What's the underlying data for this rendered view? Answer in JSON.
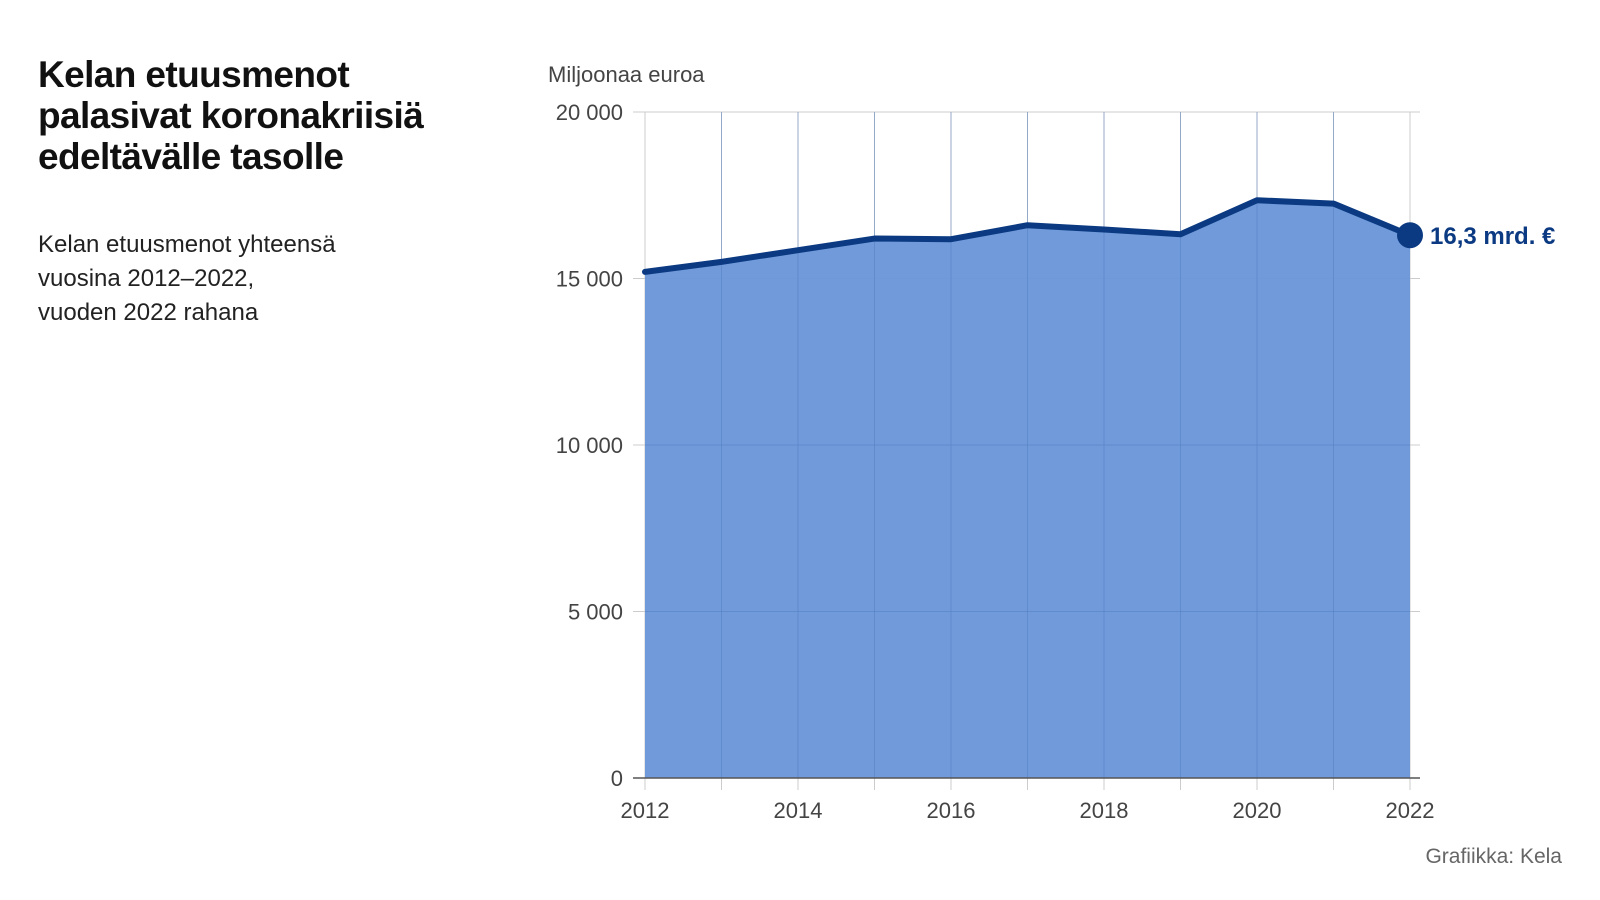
{
  "title_lines": [
    "Kelan etuusmenot",
    "palasivat koronakriisiä",
    "edeltävälle tasolle"
  ],
  "subtitle_lines": [
    "Kelan etuusmenot yhteensä",
    "vuosina 2012–2022,",
    "vuoden 2022 rahana"
  ],
  "unit_label": "Miljoonaa euroa",
  "credit": "Grafiikka: Kela",
  "chart_data": {
    "type": "area",
    "x": [
      2012,
      2013,
      2014,
      2015,
      2016,
      2017,
      2018,
      2019,
      2020,
      2021,
      2022
    ],
    "series": [
      {
        "values": [
          15200,
          15500,
          15850,
          16200,
          16180,
          16600,
          16470,
          16330,
          17350,
          17250,
          16300
        ]
      }
    ],
    "xlim": [
      2012,
      2022
    ],
    "ylim": [
      0,
      20000
    ],
    "y_ticks": [
      0,
      5000,
      10000,
      15000,
      20000
    ],
    "y_tick_labels": [
      "0",
      "5 000",
      "10 000",
      "15 000",
      "20 000"
    ],
    "x_tick_labels": [
      "2012",
      "2014",
      "2016",
      "2018",
      "2020",
      "2022"
    ],
    "end_annotation": "16,3 mrd. €",
    "grid": true,
    "colors": {
      "fill": "#6a96d8",
      "line": "#0b3a82",
      "annotation": "#0b3a82",
      "grid": "#cccccc"
    }
  }
}
